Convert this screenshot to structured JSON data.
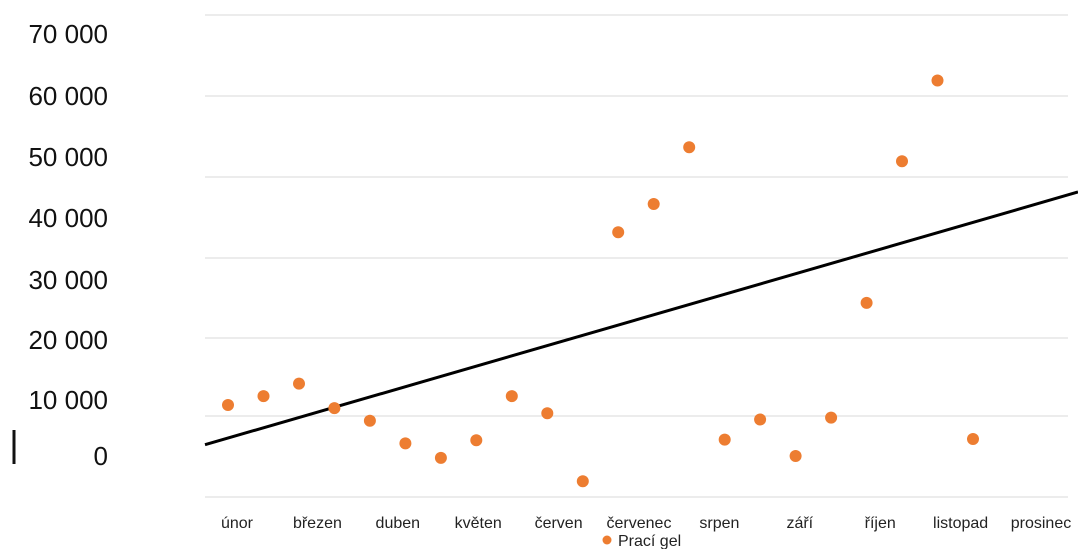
{
  "chart_data": {
    "type": "scatter",
    "title": "",
    "xlabel": "",
    "ylabel": "",
    "ylim": [
      -8000,
      70000
    ],
    "grid": true,
    "legend_placement": "bottom",
    "y_ticks": [
      0,
      10000,
      20000,
      30000,
      40000,
      50000,
      60000,
      70000
    ],
    "y_tick_labels": [
      "0",
      "10 000",
      "20 000",
      "30 000",
      "40 000",
      "50 000",
      "60 000",
      "70 000"
    ],
    "x_tick_labels": [
      "únor",
      "březen",
      "duben",
      "květen",
      "červen",
      "červenec",
      "srpen",
      "září",
      "říjen",
      "listopad",
      "prosinec"
    ],
    "series": [
      {
        "name": "Prací gel",
        "color": "#ED7D31",
        "values": [
          8100,
          9500,
          11500,
          7600,
          5600,
          2000,
          -300,
          2500,
          9500,
          6800,
          -4000,
          35500,
          40000,
          49000,
          2600,
          5800,
          0,
          6100,
          24300,
          46800,
          59600,
          2700
        ]
      }
    ],
    "trendline": {
      "type": "linear",
      "color": "#000000",
      "start_value": 1800,
      "end_value": 41900
    }
  }
}
